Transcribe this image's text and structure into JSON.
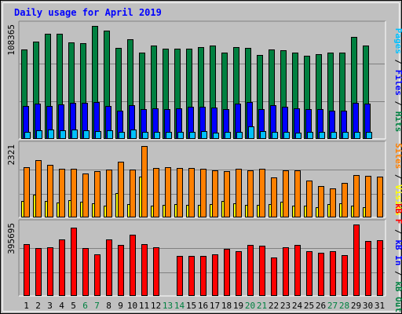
{
  "chart_data": {
    "type": "bar",
    "title": "Daily usage for April 2019",
    "days": [
      "1",
      "2",
      "3",
      "4",
      "5",
      "6",
      "7",
      "8",
      "9",
      "10",
      "11",
      "12",
      "13",
      "14",
      "15",
      "16",
      "17",
      "18",
      "19",
      "20",
      "21",
      "22",
      "23",
      "24",
      "25",
      "26",
      "27",
      "28",
      "29",
      "30",
      "31"
    ],
    "weekend_days": [
      "6",
      "7",
      "13",
      "14",
      "20",
      "21",
      "27",
      "28"
    ],
    "panels": [
      {
        "id": "hits-files-pages",
        "max_label": "108365",
        "ylim": [
          0,
          108365
        ],
        "right_label_parts": [
          {
            "text": "Pages",
            "color": "#00c0ff"
          },
          {
            "text": " / ",
            "color": "#000000"
          },
          {
            "text": "Files",
            "color": "#0000ff"
          },
          {
            "text": " / ",
            "color": "#000000"
          },
          {
            "text": "Hits",
            "color": "#008040"
          }
        ],
        "series": [
          {
            "name": "Hits",
            "color": "#008040",
            "values": [
              86000,
              93500,
              101000,
              101000,
              92800,
              92000,
              108365,
              104000,
              87500,
              95700,
              83000,
              89700,
              86800,
              86800,
              86400,
              87800,
              89200,
              82500,
              88100,
              87300,
              80800,
              85500,
              85300,
              82800,
              79600,
              81400,
              82800,
              83100,
              97600,
              89300,
              0
            ]
          },
          {
            "name": "Files",
            "color": "#0000ff",
            "values": [
              31300,
              33800,
              31300,
              33000,
              34400,
              34400,
              35000,
              31400,
              27100,
              32300,
              28500,
              29000,
              28700,
              29300,
              30700,
              31100,
              30100,
              28500,
              33600,
              35500,
              28800,
              32500,
              31000,
              29200,
              28500,
              28700,
              27300,
              27400,
              34600,
              34200,
              0
            ]
          },
          {
            "name": "Pages",
            "color": "#00c0ff",
            "values": [
              7100,
              8600,
              8700,
              8600,
              9000,
              8400,
              7800,
              8000,
              6700,
              9100,
              7100,
              6600,
              6700,
              6800,
              6900,
              7200,
              6300,
              6800,
              6800,
              11700,
              7200,
              6900,
              6700,
              6200,
              6700,
              6500,
              6500,
              6400,
              6800,
              6400,
              0
            ]
          }
        ]
      },
      {
        "id": "visits-sites",
        "max_label": "2321",
        "ylim": [
          0,
          2321
        ],
        "right_label_parts": [
          {
            "text": "Sites",
            "color": "#ff8000"
          },
          {
            "text": " / ",
            "color": "#000000"
          },
          {
            "text": "Visits",
            "color": "#ffff00"
          }
        ],
        "series": [
          {
            "name": "Visits",
            "color": "#ffff00",
            "values": [
              540,
              730,
              530,
              490,
              560,
              510,
              450,
              390,
              790,
              430,
              1330,
              390,
              410,
              440,
              420,
              410,
              430,
              530,
              470,
              420,
              420,
              440,
              500,
              390,
              380,
              340,
              440,
              460,
              380,
              340,
              0
            ]
          },
          {
            "name": "Sites",
            "color": "#ff8000",
            "values": [
              1640,
              1870,
              1700,
              1590,
              1590,
              1420,
              1510,
              1560,
              1800,
              1560,
              2321,
              1610,
              1630,
              1600,
              1600,
              1580,
              1540,
              1510,
              1590,
              1530,
              1590,
              1290,
              1540,
              1530,
              1210,
              1010,
              950,
              1110,
              1380,
              1350,
              1330
            ]
          }
        ]
      },
      {
        "id": "kbf-kbin-kbout",
        "max_label": "395695",
        "ylim": [
          0,
          395695
        ],
        "right_label_parts": [
          {
            "text": "kB F",
            "color": "#ff0000"
          },
          {
            "text": " / ",
            "color": "#000000"
          },
          {
            "text": "kB In",
            "color": "#0000ff"
          },
          {
            "text": " / ",
            "color": "#000000"
          },
          {
            "text": "kB Out",
            "color": "#008040"
          }
        ],
        "series": [
          {
            "name": "kB In",
            "color": "#0000ff",
            "values": [
              0,
              0,
              0,
              0,
              0,
              0,
              0,
              0,
              0,
              0,
              0,
              0,
              0,
              0,
              0,
              0,
              0,
              0,
              0,
              0,
              0,
              0,
              0,
              0,
              0,
              0,
              0,
              0,
              0,
              0,
              0
            ]
          },
          {
            "name": "kB Out",
            "color": "#008040",
            "values": [
              0,
              0,
              0,
              0,
              0,
              0,
              0,
              0,
              0,
              0,
              0,
              0,
              0,
              0,
              0,
              0,
              0,
              0,
              0,
              0,
              0,
              0,
              0,
              0,
              0,
              0,
              0,
              0,
              0,
              0,
              0
            ]
          },
          {
            "name": "kB F",
            "color": "#ff0000",
            "values": [
              289000,
              264000,
              270000,
              313000,
              380000,
              265000,
              229000,
              314000,
              282000,
              338000,
              289000,
              271000,
              0,
              220000,
              222000,
              222000,
              229000,
              263000,
              249000,
              282000,
              278000,
              213000,
              271000,
              282000,
              246000,
              237000,
              250000,
              224000,
              395695,
              304000,
              308000
            ]
          }
        ]
      }
    ]
  }
}
